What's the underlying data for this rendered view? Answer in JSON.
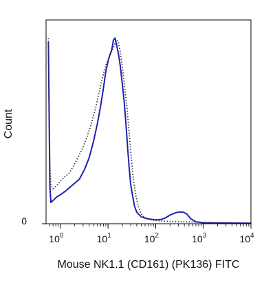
{
  "chart_data": {
    "type": "line",
    "xlabel": "Mouse NK1.1 (CD161) (PK136) FITC",
    "ylabel": "Count",
    "x_scale": "log",
    "xlim": [
      0.5,
      10000
    ],
    "ylim": [
      0,
      100
    ],
    "x_ticks": [
      {
        "base": "10",
        "exp": "0",
        "value": 1
      },
      {
        "base": "10",
        "exp": "1",
        "value": 10
      },
      {
        "base": "10",
        "exp": "2",
        "value": 100
      },
      {
        "base": "10",
        "exp": "3",
        "value": 1000
      },
      {
        "base": "10",
        "exp": "4",
        "value": 10000
      }
    ],
    "y_ticks": [
      {
        "label": "0",
        "value": 0
      }
    ],
    "grid": false,
    "series": [
      {
        "style": "solid",
        "color": "#1f1fb4",
        "points": [
          [
            0.56,
            94
          ],
          [
            0.6,
            20
          ],
          [
            0.63,
            11
          ],
          [
            0.7,
            12
          ],
          [
            0.85,
            14
          ],
          [
            1.0,
            15
          ],
          [
            1.3,
            17
          ],
          [
            1.8,
            20
          ],
          [
            2.5,
            23
          ],
          [
            3.2,
            28
          ],
          [
            4.0,
            34
          ],
          [
            5.0,
            43
          ],
          [
            6.0,
            52
          ],
          [
            7.0,
            61
          ],
          [
            8.0,
            70
          ],
          [
            9.0,
            79
          ],
          [
            10.5,
            86
          ],
          [
            12.0,
            90
          ],
          [
            13.0,
            95
          ],
          [
            14.0,
            96
          ],
          [
            15.0,
            93
          ],
          [
            16.5,
            88
          ],
          [
            18.0,
            82
          ],
          [
            20.0,
            72
          ],
          [
            22.0,
            62
          ],
          [
            24.0,
            50
          ],
          [
            26.0,
            38
          ],
          [
            28.0,
            28
          ],
          [
            30.0,
            20
          ],
          [
            33.0,
            14
          ],
          [
            36.0,
            9
          ],
          [
            40.0,
            6
          ],
          [
            50.0,
            3.5
          ],
          [
            70.0,
            2.5
          ],
          [
            100.0,
            2
          ],
          [
            130.0,
            2.2
          ],
          [
            160.0,
            3
          ],
          [
            200.0,
            4.5
          ],
          [
            250.0,
            5.5
          ],
          [
            300.0,
            6
          ],
          [
            380.0,
            6
          ],
          [
            450.0,
            5
          ],
          [
            550.0,
            2.5
          ],
          [
            700.0,
            1
          ],
          [
            1000.0,
            0.5
          ],
          [
            10000.0,
            0.3
          ]
        ]
      },
      {
        "style": "dotted",
        "color": "#333333",
        "points": [
          [
            0.56,
            96
          ],
          [
            0.6,
            30
          ],
          [
            0.63,
            20
          ],
          [
            0.7,
            18
          ],
          [
            0.85,
            20
          ],
          [
            1.0,
            22
          ],
          [
            1.2,
            24
          ],
          [
            1.5,
            26
          ],
          [
            1.8,
            29
          ],
          [
            2.2,
            33
          ],
          [
            2.8,
            38
          ],
          [
            3.5,
            44
          ],
          [
            4.5,
            52
          ],
          [
            5.5,
            60
          ],
          [
            6.5,
            68
          ],
          [
            7.5,
            75
          ],
          [
            9.0,
            82
          ],
          [
            11.0,
            87
          ],
          [
            13.0,
            91
          ],
          [
            15.0,
            95
          ],
          [
            16.5,
            94
          ],
          [
            18.0,
            89
          ],
          [
            20.0,
            81
          ],
          [
            22.0,
            72
          ],
          [
            25.0,
            60
          ],
          [
            28.0,
            46
          ],
          [
            31.0,
            33
          ],
          [
            34.0,
            23
          ],
          [
            38.0,
            15
          ],
          [
            43.0,
            9
          ],
          [
            50.0,
            5
          ],
          [
            60.0,
            3
          ],
          [
            80.0,
            2
          ],
          [
            120.0,
            1.5
          ],
          [
            200.0,
            1.2
          ],
          [
            400.0,
            1
          ],
          [
            800.0,
            0.8
          ],
          [
            2000.0,
            0.5
          ],
          [
            10000.0,
            0.3
          ]
        ]
      }
    ]
  }
}
